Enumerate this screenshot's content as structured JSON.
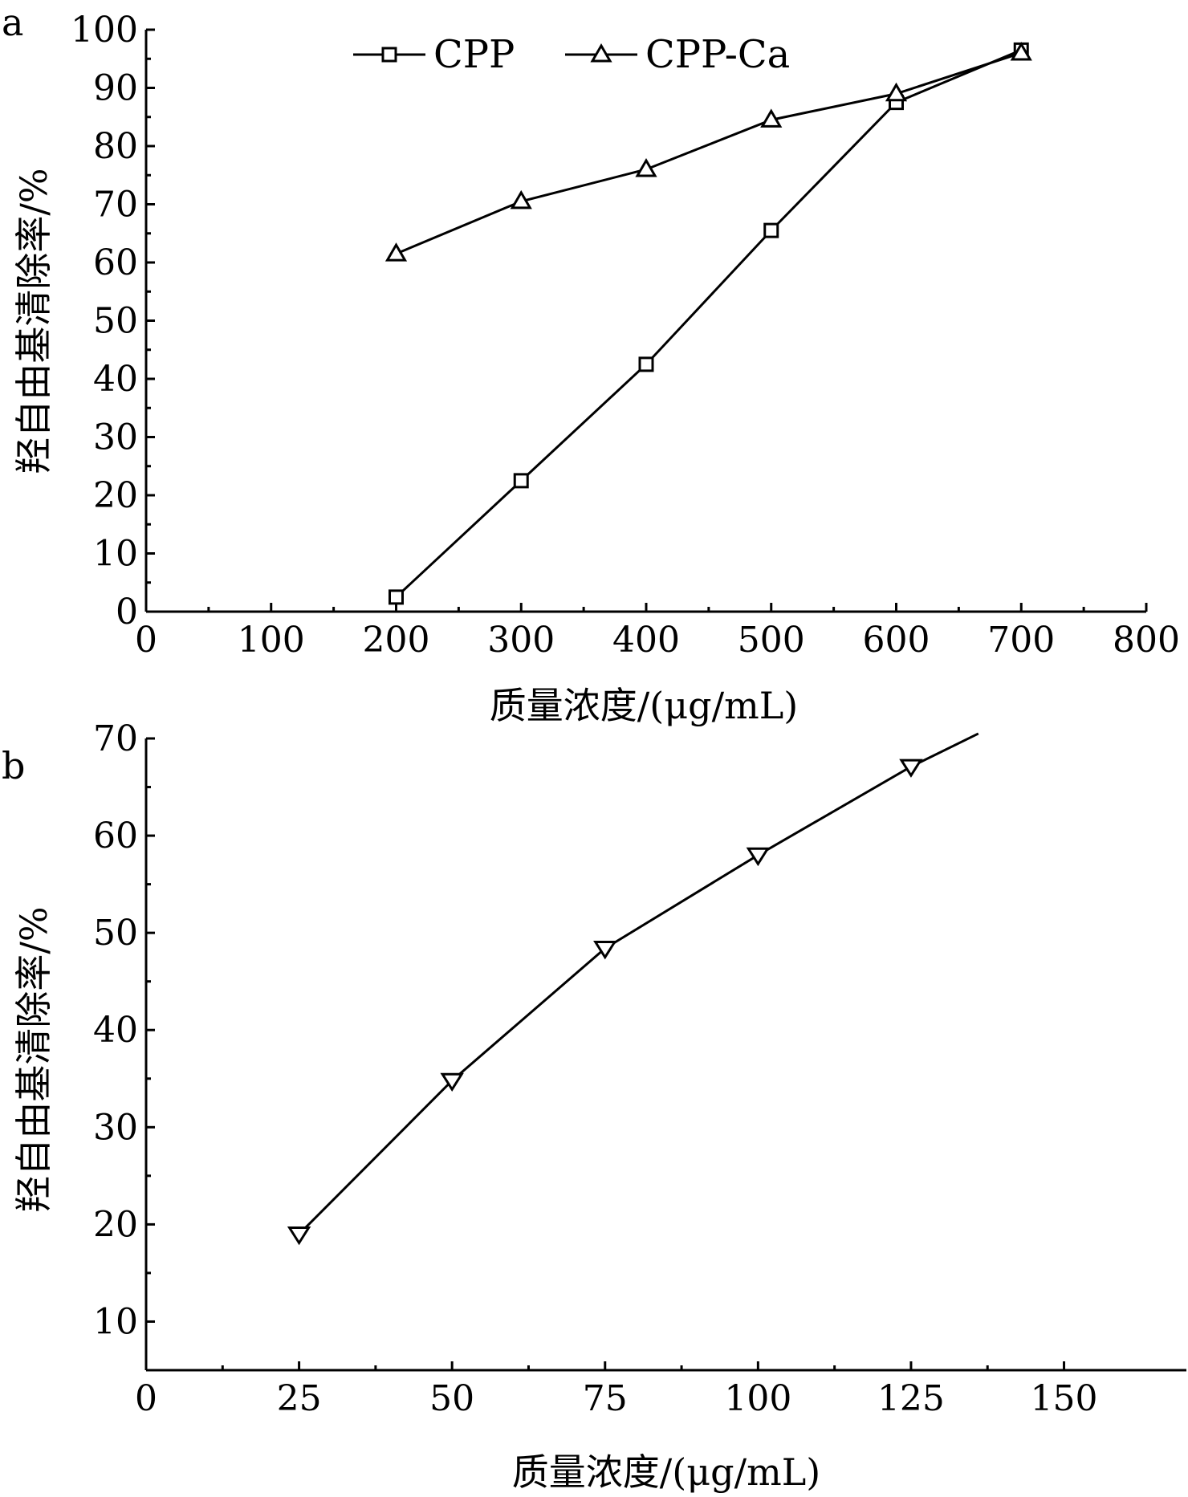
{
  "chart_data": [
    {
      "panel": "a",
      "type": "line",
      "xlabel": "质量浓度/(μg/mL)",
      "ylabel": "羟自由基清除率/%",
      "xlim": [
        0,
        800
      ],
      "ylim": [
        0,
        100
      ],
      "xticks": [
        0,
        100,
        200,
        300,
        400,
        500,
        600,
        700,
        800
      ],
      "yticks": [
        0,
        10,
        20,
        30,
        40,
        50,
        60,
        70,
        80,
        90,
        100
      ],
      "legend_position": "top-center",
      "grid": false,
      "series": [
        {
          "name": "CPP",
          "marker": "square",
          "x": [
            200,
            300,
            400,
            500,
            600,
            700
          ],
          "y": [
            2.5,
            22.5,
            42.5,
            65.5,
            87.5,
            96.5
          ]
        },
        {
          "name": "CPP-Ca",
          "marker": "triangle-up",
          "x": [
            200,
            300,
            400,
            500,
            600,
            700
          ],
          "y": [
            61.5,
            70.5,
            76.0,
            84.5,
            89.0,
            96.0
          ]
        }
      ]
    },
    {
      "panel": "b",
      "type": "line",
      "xlabel": "质量浓度/(μg/mL)",
      "ylabel": "羟自由基清除率/%",
      "xlim": [
        0,
        170
      ],
      "ylim": [
        5,
        70
      ],
      "xticks": [
        0,
        25,
        50,
        75,
        100,
        125,
        150
      ],
      "yticks": [
        10,
        20,
        30,
        40,
        50,
        60,
        70
      ],
      "grid": false,
      "series": [
        {
          "marker": "triangle-down",
          "x": [
            25,
            50,
            75,
            100,
            125
          ],
          "y": [
            19.0,
            34.8,
            48.4,
            58.0,
            67.1
          ],
          "line_extends_to": [
            136,
            70.5
          ]
        }
      ]
    }
  ]
}
